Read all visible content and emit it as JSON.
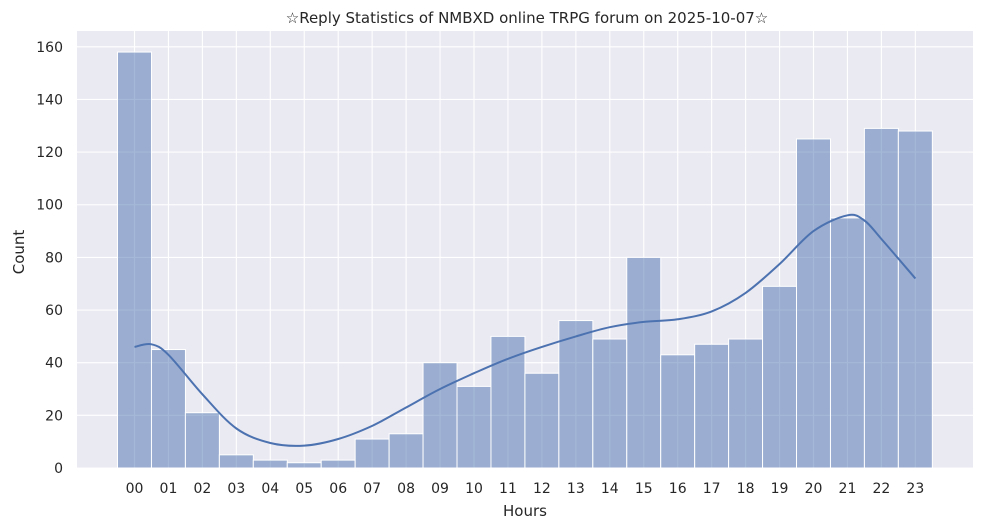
{
  "chart_data": {
    "type": "bar",
    "title": "☆Reply Statistics of NMBXD online TRPG forum on 2025-10-07☆",
    "xlabel": "Hours",
    "ylabel": "Count",
    "categories": [
      "00",
      "01",
      "02",
      "03",
      "04",
      "05",
      "06",
      "07",
      "08",
      "09",
      "10",
      "11",
      "12",
      "13",
      "14",
      "15",
      "16",
      "17",
      "18",
      "19",
      "20",
      "21",
      "22",
      "23"
    ],
    "values": [
      158,
      45,
      21,
      5,
      3,
      2,
      3,
      11,
      13,
      40,
      31,
      50,
      36,
      56,
      49,
      80,
      43,
      47,
      49,
      69,
      125,
      95,
      129,
      128
    ],
    "kde_curve": [
      {
        "x": 0,
        "y": 46
      },
      {
        "x": 0.5,
        "y": 47
      },
      {
        "x": 1,
        "y": 43
      },
      {
        "x": 2,
        "y": 28
      },
      {
        "x": 3,
        "y": 15
      },
      {
        "x": 4,
        "y": 9.5
      },
      {
        "x": 5,
        "y": 8.5
      },
      {
        "x": 6,
        "y": 11
      },
      {
        "x": 7,
        "y": 16
      },
      {
        "x": 8,
        "y": 23
      },
      {
        "x": 9,
        "y": 30
      },
      {
        "x": 10,
        "y": 36
      },
      {
        "x": 11,
        "y": 41.5
      },
      {
        "x": 12,
        "y": 46
      },
      {
        "x": 13,
        "y": 50
      },
      {
        "x": 14,
        "y": 53.5
      },
      {
        "x": 15,
        "y": 55.5
      },
      {
        "x": 16,
        "y": 56.5
      },
      {
        "x": 17,
        "y": 59.5
      },
      {
        "x": 18,
        "y": 66.5
      },
      {
        "x": 19,
        "y": 77.5
      },
      {
        "x": 20,
        "y": 90
      },
      {
        "x": 21,
        "y": 96
      },
      {
        "x": 21.5,
        "y": 94
      },
      {
        "x": 22,
        "y": 87
      },
      {
        "x": 23,
        "y": 72
      }
    ],
    "ylim": [
      0,
      166
    ],
    "yticks": [
      0,
      20,
      40,
      60,
      80,
      100,
      120,
      140,
      160
    ],
    "grid": true,
    "colors": {
      "bar": "#4c72b0",
      "line": "#4c72b0",
      "background": "#eaeaf2",
      "grid": "#ffffff"
    }
  }
}
